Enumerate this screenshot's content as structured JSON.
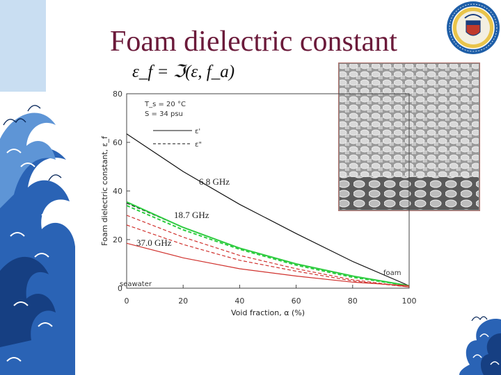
{
  "slide": {
    "title": "Foam dielectric constant",
    "formula": "ε_f = ℑ(ε, f_a)"
  },
  "colors": {
    "title": "#6b1a3a",
    "green": "#2ecc40",
    "red": "#d0312d",
    "black": "#111111",
    "accent": "#1f5fa8"
  },
  "icons": {
    "seal": "university-seal-icon",
    "wave": "wave-decoration-icon",
    "photo": "foam-photo"
  },
  "chart_data": {
    "type": "line",
    "xlabel": "Void fraction, α (%)",
    "ylabel": "Foam dielectric constant, ε_f",
    "xlim": [
      0,
      100
    ],
    "ylim": [
      0,
      80
    ],
    "x_ticks": [
      "0",
      "20",
      "40",
      "60",
      "80",
      "100"
    ],
    "y_ticks": [
      "0",
      "20",
      "40",
      "60",
      "80"
    ],
    "legend": {
      "conditions": [
        "T_s = 20 °C",
        "S = 34 psu"
      ],
      "solid_label": "ε'",
      "dashed_label": "ε\""
    },
    "annotations": {
      "f1": "6.8 GHz",
      "f2": "18.7 GHz",
      "f3": "37.0 GHz",
      "foam": "foam",
      "seawater": "seawater"
    },
    "series": [
      {
        "freq": "6.8 GHz",
        "part": "real",
        "color": "#111111",
        "dash": false,
        "x": [
          0,
          20,
          40,
          60,
          80,
          100
        ],
        "y": [
          63.5,
          48,
          34.5,
          22.5,
          11,
          1
        ]
      },
      {
        "freq": "6.8 GHz",
        "part": "imaginary",
        "color": "#111111",
        "dash": true,
        "x": [
          0,
          20,
          40,
          60,
          80,
          100
        ],
        "y": [
          35,
          25,
          16.5,
          10,
          5,
          1
        ]
      },
      {
        "freq": "18.7 GHz",
        "part": "real",
        "color": "#2ecc40",
        "dash": false,
        "x": [
          0,
          20,
          40,
          60,
          80,
          100
        ],
        "y": [
          35.5,
          25,
          16.5,
          10,
          5,
          1
        ]
      },
      {
        "freq": "18.7 GHz",
        "part": "imaginary",
        "color": "#2ecc40",
        "dash": true,
        "x": [
          0,
          20,
          40,
          60,
          80,
          100
        ],
        "y": [
          34,
          24,
          16,
          9.5,
          4.5,
          1
        ]
      },
      {
        "freq": "37.0 GHz",
        "part": "real",
        "color": "#d0312d",
        "dash": false,
        "x": [
          0,
          20,
          40,
          60,
          80,
          100
        ],
        "y": [
          18.5,
          12.5,
          8,
          5,
          2.5,
          1
        ]
      },
      {
        "freq": "37.0 GHz",
        "part": "imaginary",
        "color": "#d0312d",
        "dash": true,
        "x": [
          0,
          20,
          40,
          60,
          80,
          100
        ],
        "y": [
          26,
          18,
          11.5,
          7,
          3,
          0.5
        ]
      },
      {
        "freq": "37.0 GHz",
        "part": "real-2",
        "color": "#d0312d",
        "dash": true,
        "x": [
          0,
          20,
          40,
          60,
          80,
          100
        ],
        "y": [
          30,
          21,
          13.5,
          8,
          3.5,
          0.5
        ]
      }
    ]
  }
}
